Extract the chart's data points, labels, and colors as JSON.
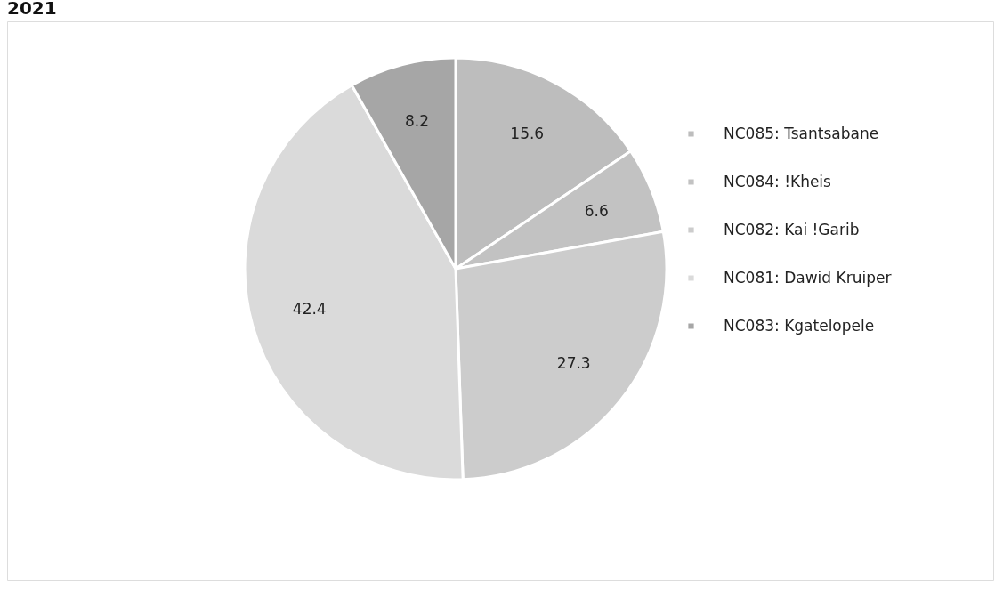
{
  "chart_data": {
    "type": "pie",
    "title": "2021",
    "categories": [
      "NC085: Tsantsabane",
      "NC084: !Kheis",
      "NC082: Kai !Garib",
      "NC081: Dawid Kruiper",
      "NC083: Kgatelopele"
    ],
    "values": [
      15.6,
      6.6,
      27.3,
      42.4,
      8.2
    ],
    "colors": [
      "#bdbdbd",
      "#c2c2c2",
      "#cccccc",
      "#dadada",
      "#a6a6a6"
    ],
    "data_labels": true,
    "legend": "right"
  }
}
